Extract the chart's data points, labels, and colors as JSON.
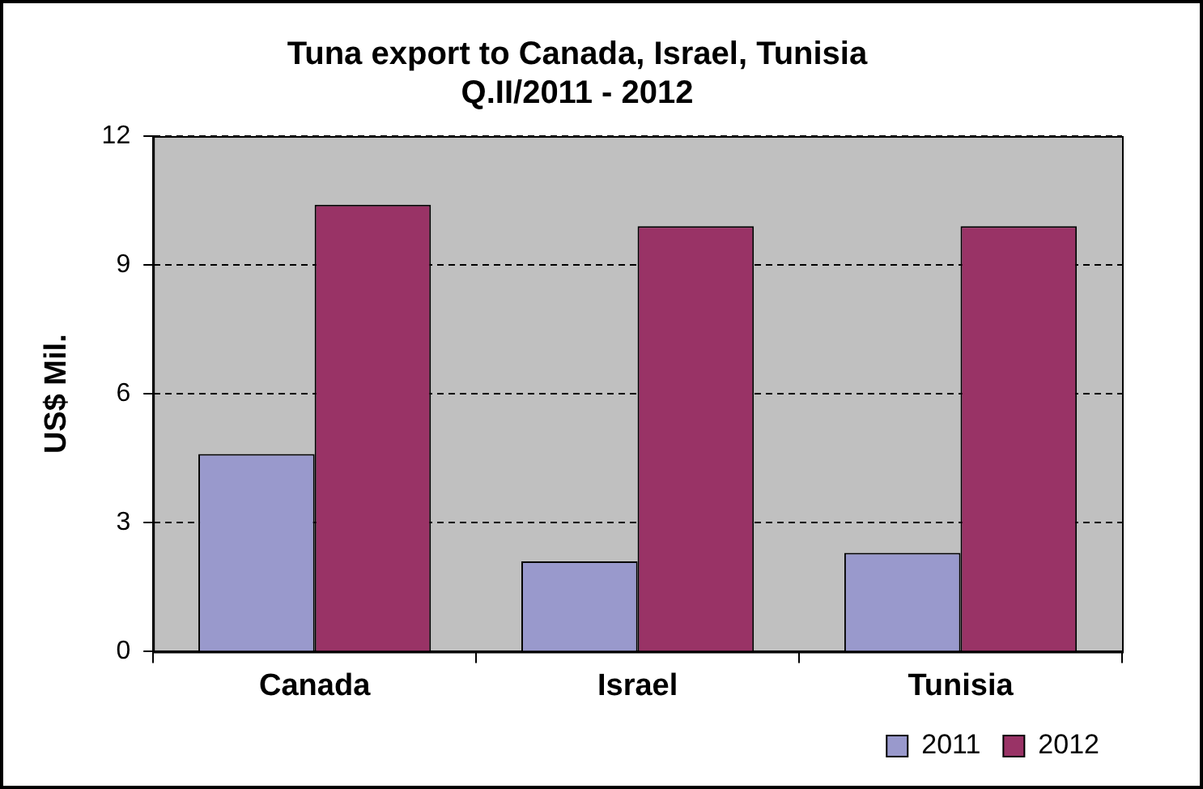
{
  "chart_data": {
    "type": "bar",
    "title": [
      "Tuna export to Canada, Israel, Tunisia",
      "Q.II/2011 - 2012"
    ],
    "ylabel": "US$ Mil.",
    "categories": [
      "Canada",
      "Israel",
      "Tunisia"
    ],
    "series": [
      {
        "name": "2011",
        "color": "#9999cc",
        "values": [
          4.6,
          2.1,
          2.3
        ]
      },
      {
        "name": "2012",
        "color": "#993366",
        "values": [
          10.4,
          9.9,
          9.9
        ]
      }
    ],
    "ylim": [
      0,
      12
    ],
    "yticks": [
      0,
      3,
      6,
      9,
      12
    ],
    "grid": "y",
    "legend": "bottom right"
  }
}
